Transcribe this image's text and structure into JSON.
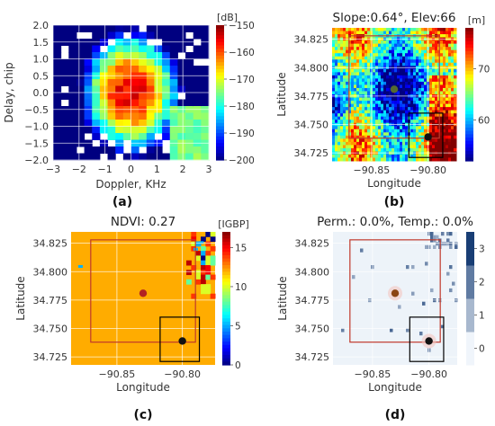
{
  "chart_data": [
    {
      "panel": "(a)",
      "type": "heatmap",
      "title": "",
      "xlabel": "Doppler, KHz",
      "ylabel": "Delay, chip",
      "xlim": [
        -3,
        3
      ],
      "ylim": [
        -2,
        2
      ],
      "xticks": [
        "−3",
        "−2",
        "−1",
        "0",
        "1",
        "2",
        "3"
      ],
      "yticks": [
        "2.0",
        "1.5",
        "1.0",
        "0.5",
        "0.0",
        "−0.5",
        "−1.0",
        "−1.5",
        "−2.0"
      ],
      "colorbar": {
        "label": "[dB]",
        "ticks": [
          "−150",
          "−160",
          "−170",
          "−180",
          "−190",
          "−200"
        ],
        "range": [
          -200,
          -150
        ],
        "colormap": "jet"
      },
      "peak": {
        "doppler": 0,
        "delay": 0,
        "value": -155
      }
    },
    {
      "panel": "(b)",
      "type": "heatmap",
      "title": "Slope:0.64°, Elev:66",
      "xlabel": "Longitude",
      "ylabel": "Latitude",
      "xlim": [
        -90.885,
        -90.775
      ],
      "ylim": [
        34.718,
        34.835
      ],
      "xticks": [
        "−90.85",
        "−90.80"
      ],
      "yticks": [
        "34.825",
        "34.800",
        "34.775",
        "34.750",
        "34.725"
      ],
      "colorbar": {
        "label": "[m]",
        "ticks": [
          "70",
          "60"
        ],
        "range": [
          52,
          78
        ],
        "colormap": "jet"
      },
      "red_box": {
        "lon": [
          -90.87,
          -90.79
        ],
        "lat": [
          34.738,
          34.828
        ]
      },
      "black_box": {
        "lon": [
          -90.817,
          -90.787
        ],
        "lat": [
          34.721,
          34.76
        ]
      },
      "points": [
        {
          "lon": -90.83,
          "lat": 34.781,
          "color": "#556b2f"
        },
        {
          "lon": -90.8,
          "lat": 34.739,
          "color": "#111111"
        }
      ]
    },
    {
      "panel": "(c)",
      "type": "heatmap",
      "title": "NDVI: 0.27",
      "xlabel": "Longitude",
      "ylabel": "Latitude",
      "xlim": [
        -90.885,
        -90.775
      ],
      "ylim": [
        34.718,
        34.835
      ],
      "xticks": [
        "−90.85",
        "−90.80"
      ],
      "yticks": [
        "34.825",
        "34.800",
        "34.775",
        "34.750",
        "34.725"
      ],
      "colorbar": {
        "label": "[IGBP]",
        "ticks": [
          "15",
          "10",
          "5",
          "0"
        ],
        "range": [
          0,
          17
        ],
        "colormap": "jet"
      },
      "dominant_class": 12,
      "red_box": {
        "lon": [
          -90.87,
          -90.79
        ],
        "lat": [
          34.738,
          34.828
        ]
      },
      "black_box": {
        "lon": [
          -90.817,
          -90.787
        ],
        "lat": [
          34.721,
          34.76
        ]
      },
      "points": [
        {
          "lon": -90.83,
          "lat": 34.781,
          "color": "#b22222"
        },
        {
          "lon": -90.8,
          "lat": 34.739,
          "color": "#111111"
        }
      ]
    },
    {
      "panel": "(d)",
      "type": "heatmap",
      "title": "Perm.: 0.0%, Temp.: 0.0%",
      "xlabel": "Longitude",
      "ylabel": "Latitude",
      "xlim": [
        -90.885,
        -90.775
      ],
      "ylim": [
        34.718,
        34.835
      ],
      "xticks": [
        "−90.85",
        "−90.80"
      ],
      "yticks": [
        "34.825",
        "34.800",
        "34.775",
        "34.750",
        "34.725"
      ],
      "colorbar": {
        "label": "",
        "ticks": [
          "3",
          "2",
          "1",
          "0"
        ],
        "range": [
          -0.5,
          3.5
        ],
        "colormap": "blues"
      },
      "red_box": {
        "lon": [
          -90.87,
          -90.79
        ],
        "lat": [
          34.738,
          34.828
        ]
      },
      "black_box": {
        "lon": [
          -90.817,
          -90.787
        ],
        "lat": [
          34.721,
          34.76
        ]
      },
      "points": [
        {
          "lon": -90.83,
          "lat": 34.781,
          "color": "#8b4513"
        },
        {
          "lon": -90.8,
          "lat": 34.739,
          "color": "#111111"
        }
      ]
    }
  ],
  "colors": {
    "grid": "#ffffff",
    "frame": "#cccccc",
    "red_box": "#c0392b",
    "black_box": "#000000"
  }
}
